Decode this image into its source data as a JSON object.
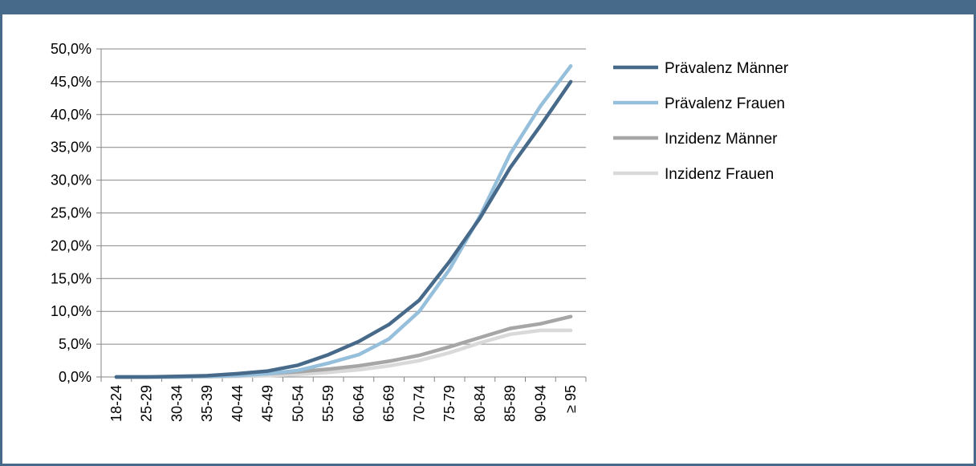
{
  "chart_data": {
    "type": "line",
    "title": "",
    "xlabel": "",
    "ylabel": "",
    "ylim": [
      0,
      50
    ],
    "y_ticks": [
      "0,0%",
      "5,0%",
      "10,0%",
      "15,0%",
      "20,0%",
      "25,0%",
      "30,0%",
      "35,0%",
      "40,0%",
      "45,0%",
      "50,0%"
    ],
    "grid": true,
    "legend_position": "right",
    "categories": [
      "18-24",
      "25-29",
      "30-34",
      "35-39",
      "40-44",
      "45-49",
      "50-54",
      "55-59",
      "60-64",
      "65-69",
      "70-74",
      "75-79",
      "80-84",
      "85-89",
      "90-94",
      "≥ 95"
    ],
    "series": [
      {
        "name": "Prävalenz Männer",
        "color": "#476a8a",
        "values": [
          0.0,
          0.0,
          0.1,
          0.2,
          0.5,
          0.9,
          1.8,
          3.4,
          5.4,
          8.0,
          11.7,
          17.6,
          24.2,
          31.9,
          38.3,
          45.0
        ]
      },
      {
        "name": "Prävalenz  Frauen",
        "color": "#96bfdc",
        "values": [
          0.0,
          0.0,
          0.0,
          0.1,
          0.2,
          0.5,
          1.0,
          2.1,
          3.4,
          5.8,
          10.0,
          16.4,
          24.5,
          34.0,
          41.3,
          47.4
        ]
      },
      {
        "name": "Inzidenz Männer",
        "color": "#a6a6a6",
        "values": [
          0.0,
          0.0,
          0.0,
          0.1,
          0.3,
          0.5,
          0.8,
          1.2,
          1.7,
          2.4,
          3.3,
          4.6,
          6.0,
          7.4,
          8.1,
          9.2
        ]
      },
      {
        "name": "Inzidenz Frauen",
        "color": "#d9d9d9",
        "values": [
          0.0,
          0.0,
          0.0,
          0.0,
          0.1,
          0.2,
          0.4,
          0.7,
          1.1,
          1.7,
          2.5,
          3.7,
          5.2,
          6.5,
          7.1,
          7.1
        ]
      }
    ]
  }
}
